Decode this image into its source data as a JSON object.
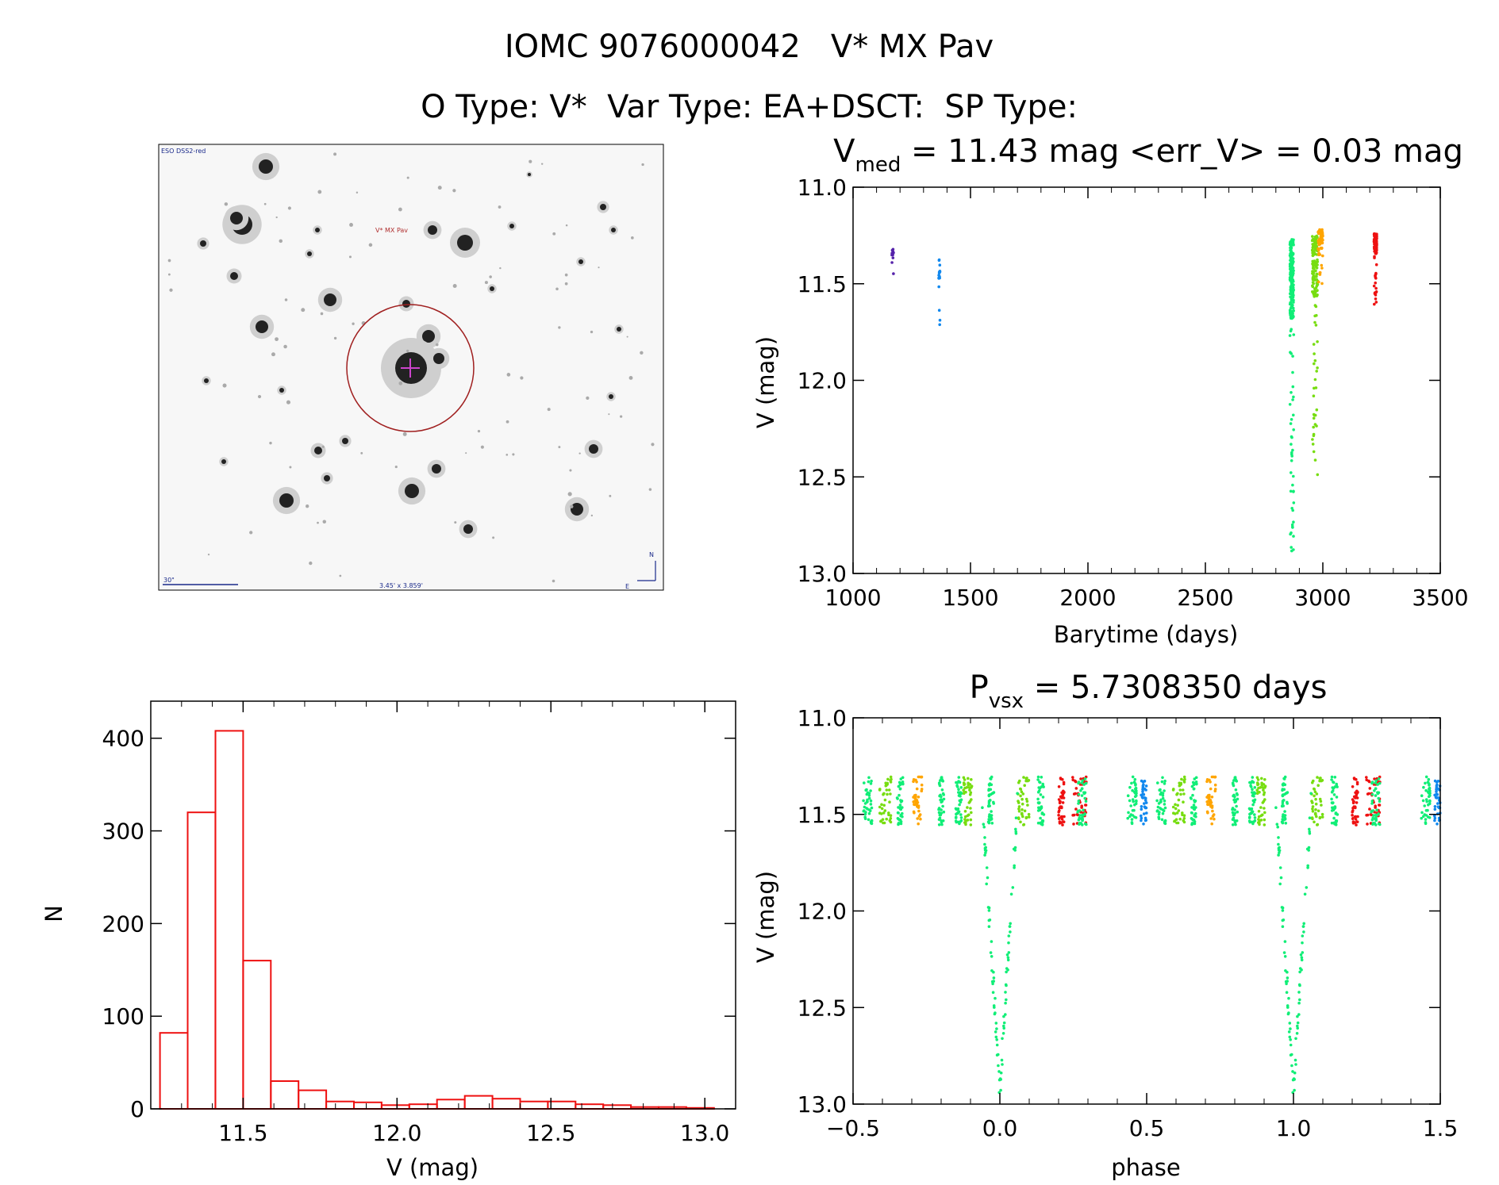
{
  "header": {
    "title": "IOMC 9076000042   V* MX Pav",
    "subtitle": "O Type: V*  Var Type: EA+DSCT:  SP Type:"
  },
  "sky_image": {
    "survey_label": "ESO DSS2-red",
    "target_label": "V* MX Pav",
    "scale_label": "30\"",
    "fov_label": "3.45' x 3.859'",
    "north_label": "N",
    "east_label": "E"
  },
  "colors": {
    "histogram": "#ee1111",
    "target_marker": "#b03030",
    "annotation": "#1a2a8a",
    "seasons": [
      "#5522aa",
      "#1188ee",
      "#11ee77",
      "#77dd11",
      "#ffa500",
      "#ee1111"
    ]
  },
  "chart_data": [
    {
      "type": "scatter",
      "name": "light-curve",
      "title_prefix": "V",
      "title_sub": "med",
      "title_rest": " = 11.43 mag <err_V> = 0.03 mag",
      "xlabel": "Barytime (days)",
      "ylabel": "V (mag)",
      "xlim": [
        1000,
        3500
      ],
      "ylim": [
        13.0,
        11.0
      ],
      "y_inverted": true,
      "x_ticks": [
        1000,
        1500,
        2000,
        2500,
        3000,
        3500
      ],
      "x_tick_labels": [
        "1000",
        "1500",
        "2000",
        "2500",
        "3000",
        "3500"
      ],
      "y_ticks": [
        11.0,
        11.5,
        12.0,
        12.5,
        13.0
      ],
      "y_tick_labels": [
        "11.0",
        "11.5",
        "12.0",
        "12.5",
        "13.0"
      ],
      "series": [
        {
          "color": "#5522aa",
          "x_range": [
            1165,
            1172
          ],
          "y_range": [
            11.32,
            11.48
          ],
          "n": 14
        },
        {
          "color": "#1188ee",
          "x_range": [
            1365,
            1370
          ],
          "y_range": [
            11.37,
            11.78
          ],
          "n": 16
        },
        {
          "color": "#11ee77",
          "x_range": [
            2860,
            2876
          ],
          "y_range": [
            11.27,
            12.94
          ],
          "n": 220
        },
        {
          "color": "#77dd11",
          "x_range": [
            2955,
            2978
          ],
          "y_range": [
            11.25,
            12.52
          ],
          "n": 140
        },
        {
          "color": "#ffa500",
          "x_range": [
            2980,
            3000
          ],
          "y_range": [
            11.22,
            11.5
          ],
          "n": 80
        },
        {
          "color": "#ee1111",
          "x_range": [
            3218,
            3230
          ],
          "y_range": [
            11.24,
            11.61
          ],
          "n": 110
        }
      ]
    },
    {
      "type": "bar",
      "name": "histogram",
      "xlabel": "V (mag)",
      "ylabel": "N",
      "xlim": [
        11.2,
        13.1
      ],
      "ylim": [
        0,
        440
      ],
      "x_ticks": [
        11.5,
        12.0,
        12.5,
        13.0
      ],
      "x_tick_labels": [
        "11.5",
        "12.0",
        "12.5",
        "13.0"
      ],
      "y_ticks": [
        0,
        100,
        200,
        300,
        400
      ],
      "y_tick_labels": [
        "0",
        "100",
        "200",
        "300",
        "400"
      ],
      "bin_start": 11.23,
      "bin_width": 0.09,
      "values": [
        82,
        320,
        408,
        160,
        30,
        20,
        8,
        7,
        4,
        5,
        10,
        14,
        11,
        8,
        8,
        5,
        4,
        2,
        2,
        1
      ]
    },
    {
      "type": "scatter",
      "name": "phase-curve",
      "title_prefix": "P",
      "title_sub": "vsx",
      "title_rest": " = 5.7308350 days",
      "xlabel": "phase",
      "ylabel": "V (mag)",
      "xlim": [
        -0.5,
        1.5
      ],
      "ylim": [
        13.0,
        11.0
      ],
      "y_inverted": true,
      "x_ticks": [
        -0.5,
        0.0,
        0.5,
        1.0,
        1.5
      ],
      "x_tick_labels": [
        "−0.5",
        "0.0",
        "0.5",
        "1.0",
        "1.5"
      ],
      "y_ticks": [
        11.0,
        11.5,
        12.0,
        12.5,
        13.0
      ],
      "y_tick_labels": [
        "11.0",
        "11.5",
        "12.0",
        "12.5",
        "13.0"
      ],
      "period_days": 5.730835,
      "eclipse_phase": 0.0,
      "eclipse_depth_mag": 12.93,
      "baseline_mag": 11.43
    }
  ]
}
